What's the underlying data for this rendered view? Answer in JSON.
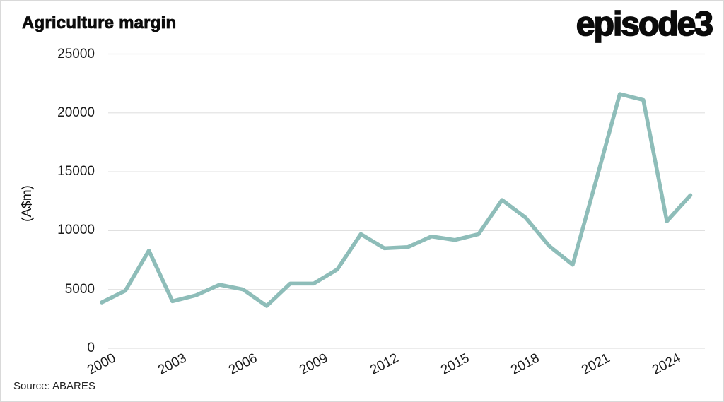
{
  "header": {
    "title": "Agriculture margin",
    "logo": "episode3"
  },
  "footer": {
    "source": "Source: ABARES"
  },
  "colors": {
    "line": "#8ebdb9",
    "grid": "#e0e0e0",
    "text": "#1a1a1a",
    "background": "#ffffff"
  },
  "chart_data": {
    "type": "line",
    "title": "Agriculture margin",
    "ylabel": "(A$m)",
    "xlabel": "",
    "source": "Source: ABARES",
    "legend": "none",
    "grid": "horizontal-only",
    "ylim": [
      0,
      25000
    ],
    "yticks": [
      0,
      5000,
      10000,
      15000,
      20000,
      25000
    ],
    "xticks": [
      2000,
      2003,
      2006,
      2009,
      2012,
      2015,
      2018,
      2021,
      2024
    ],
    "xtick_labels": [
      "2000",
      "2003",
      "2006",
      "2009",
      "2012",
      "2015",
      "2018",
      "2021",
      "2024"
    ],
    "x": [
      2000,
      2001,
      2002,
      2003,
      2004,
      2005,
      2006,
      2007,
      2008,
      2009,
      2010,
      2011,
      2012,
      2013,
      2014,
      2015,
      2016,
      2017,
      2018,
      2019,
      2020,
      2021,
      2022,
      2023,
      2024,
      2025
    ],
    "series": [
      {
        "name": "Agriculture margin",
        "color": "#8ebdb9",
        "values": [
          3900,
          4900,
          8300,
          4000,
          4500,
          5400,
          5000,
          3600,
          5500,
          5500,
          6700,
          9700,
          8500,
          8600,
          9500,
          9200,
          9700,
          12600,
          11100,
          8700,
          7100,
          14300,
          21600,
          21100,
          10800,
          13000
        ]
      }
    ]
  }
}
